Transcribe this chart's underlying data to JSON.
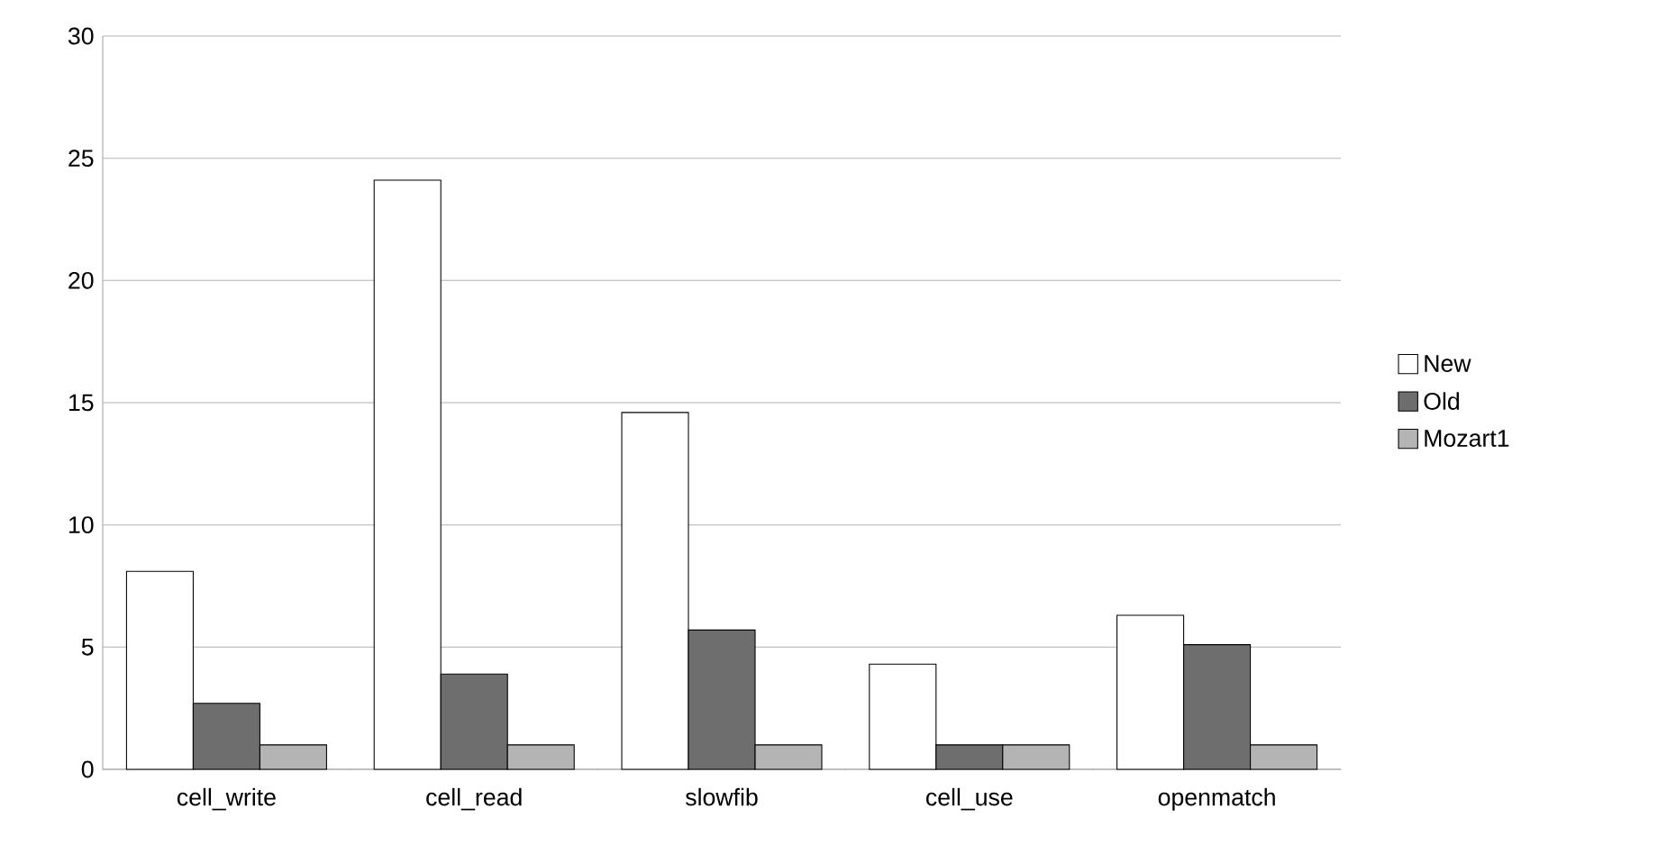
{
  "chart_data": {
    "type": "bar",
    "categories": [
      "cell_write",
      "cell_read",
      "slowfib",
      "cell_use",
      "openmatch"
    ],
    "series": [
      {
        "name": "New",
        "color": "#ffffff",
        "values": [
          8.1,
          24.1,
          14.6,
          4.3,
          6.3
        ]
      },
      {
        "name": "Old",
        "color": "#6e6e6e",
        "values": [
          2.7,
          3.9,
          5.7,
          1.0,
          5.1
        ]
      },
      {
        "name": "Mozart1",
        "color": "#b4b4b4",
        "values": [
          1.0,
          1.0,
          1.0,
          1.0,
          1.0
        ]
      }
    ],
    "ylim": [
      0,
      30
    ],
    "yticks": [
      0,
      5,
      10,
      15,
      20,
      25,
      30
    ],
    "grid": "y",
    "legend": "right"
  }
}
